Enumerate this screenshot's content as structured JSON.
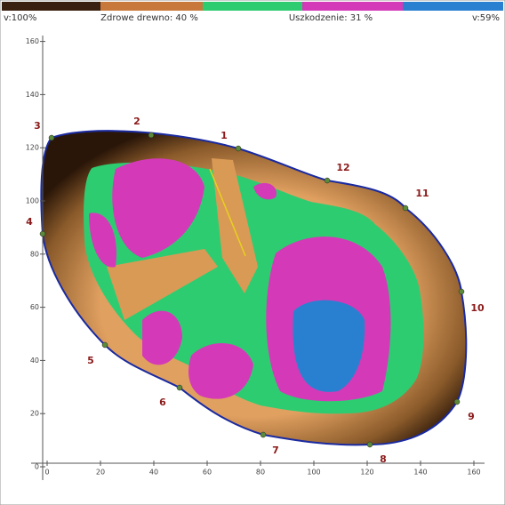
{
  "legend": {
    "left": "v:100%",
    "healthy": "Zdrowe drewno: 40 %",
    "damaged": "Uszkodzenie: 31 %",
    "right": "v:59%"
  },
  "axes": {
    "xticks": [
      0,
      20,
      40,
      60,
      80,
      100,
      120,
      140,
      160
    ],
    "yticks": [
      0,
      20,
      40,
      60,
      80,
      100,
      120,
      140,
      160
    ]
  },
  "sensors": [
    "1",
    "2",
    "3",
    "4",
    "5",
    "6",
    "7",
    "8",
    "9",
    "10",
    "11",
    "12"
  ]
}
